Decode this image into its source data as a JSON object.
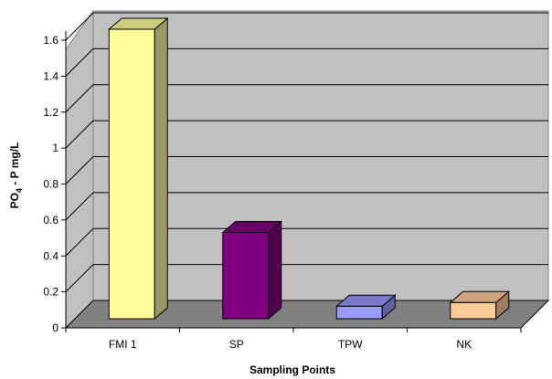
{
  "chart_data": {
    "type": "bar",
    "title": "",
    "xlabel": "Sampling Points",
    "ylabel": {
      "main": "PO",
      "subscript": "4",
      "rest": " - P mg/L"
    },
    "categories": [
      "FMI 1",
      "SP",
      "TPW",
      "NK"
    ],
    "values": [
      1.61,
      0.48,
      0.07,
      0.09
    ],
    "colors": {
      "bar_fills": [
        "#FFFF99",
        "#800080",
        "#9999FF",
        "#FFCC99"
      ],
      "bar_sides": [
        "#999966",
        "#500050",
        "#6060A0",
        "#A07F5F"
      ],
      "bar_tops": [
        "#CCCC7A",
        "#660066",
        "#7A7ACC",
        "#CCA37A"
      ],
      "wall": "#C0C0C0",
      "floor": "#808080",
      "gridline": "#000000"
    },
    "yticks": [
      "0",
      "0.2",
      "0.4",
      "0.6",
      "0.8",
      "1",
      "1.2",
      "1.4",
      "1.6"
    ],
    "ylim": [
      0,
      1.6
    ],
    "grid": true,
    "legend": "none"
  }
}
